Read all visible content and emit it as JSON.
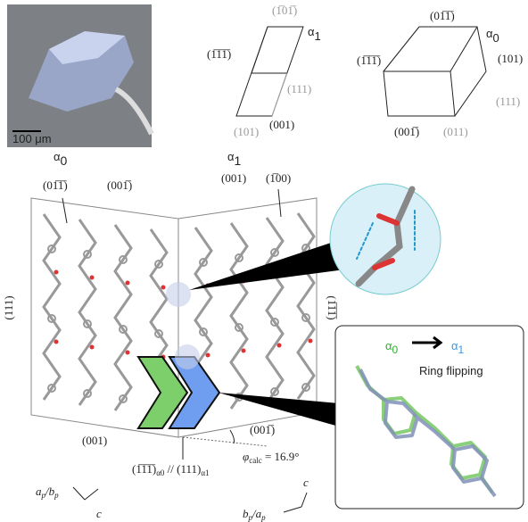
{
  "photo": {
    "scale_label": "100 μm"
  },
  "alpha1_habit": {
    "symbol": "α",
    "sub": "1",
    "faces": [
      "(1̅01̅)",
      "(1̅1̅1̅)",
      "(111)",
      "(101)",
      "(001)"
    ]
  },
  "alpha0_habit": {
    "symbol": "α",
    "sub": "0",
    "faces": [
      "(01̅1̅)",
      "(1̅1̅1̅)",
      "(101)",
      "(111)",
      "(001̅)",
      "(011)"
    ]
  },
  "packing": {
    "left_phase": {
      "symbol": "α",
      "sub": "0",
      "top_face": "(001̅)",
      "corner_face": "(01̅1̅)",
      "side_face": "(111)",
      "bottom_face": "(001)"
    },
    "right_phase": {
      "symbol": "α",
      "sub": "1",
      "top_face": "(001)",
      "corner_face": "(1̅00)",
      "side_face": "(1̅1̅1̅)",
      "bottom_face": "(001̅)"
    },
    "interface": {
      "face0": "(1̅1̅1̅)",
      "sub0": "α0",
      "sep": " // (111)",
      "sub1": "α1"
    },
    "angle": {
      "symbol": "φ",
      "sub": "calc",
      "value": " = 16.9°"
    },
    "left_axes": {
      "num": "a",
      "num_sub": "p",
      "slash": "/",
      "den": "b",
      "den_sub": "p",
      "c": "c"
    },
    "right_axes": {
      "num": "b",
      "num_sub": "p",
      "slash": "/",
      "den": "a",
      "den_sub": "p",
      "c": "c"
    }
  },
  "inset": {
    "from_symbol": "α",
    "from_sub": "0",
    "to_symbol": "α",
    "to_sub": "1",
    "caption": "Ring flipping"
  }
}
